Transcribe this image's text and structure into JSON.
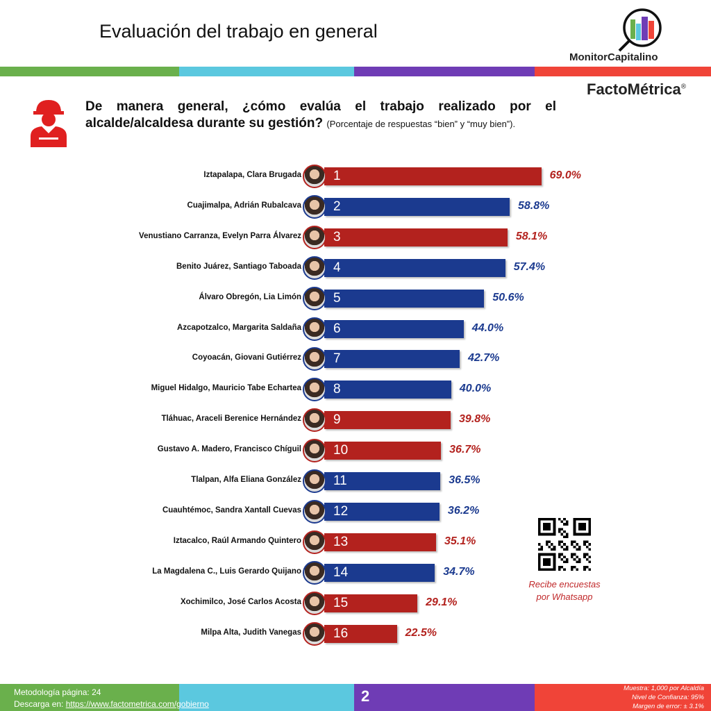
{
  "header": {
    "title": "Evaluación del trabajo en general",
    "logo_text": "MonitorCapitalino",
    "brand": "FactoMétrica",
    "registered": "®"
  },
  "colors": {
    "green": "#6ab04c",
    "cyan": "#5bc8df",
    "purple": "#6f3cb5",
    "red": "#f04438",
    "bar_red": "#b3221e",
    "bar_blue": "#1b3a8f"
  },
  "question": {
    "text": "De manera general, ¿cómo evalúa el trabajo realizado por el alcalde/alcaldesa durante su gestión?",
    "note": "(Porcentaje de respuestas “bien” y “muy bien”)."
  },
  "chart_data": {
    "type": "bar",
    "orientation": "horizontal",
    "unit": "%",
    "xlim": [
      0,
      100
    ],
    "categories": [
      "Iztapalapa, Clara Brugada",
      "Cuajimalpa, Adrián Rubalcava",
      "Venustiano Carranza, Evelyn Parra Álvarez",
      "Benito Juárez, Santiago Taboada",
      "Álvaro Obregón, Lia Limón",
      "Azcapotzalco, Margarita Saldaña",
      "Coyoacán, Giovani Gutiérrez",
      "Miguel Hidalgo, Mauricio Tabe Echartea",
      "Tláhuac, Araceli Berenice Hernández",
      "Gustavo A. Madero, Francisco Chíguil",
      "Tlalpan, Alfa Eliana González",
      "Cuauhtémoc, Sandra Xantall Cuevas",
      "Iztacalco, Raúl Armando Quintero",
      "La Magdalena C., Luis Gerardo Quijano",
      "Xochimilco, José Carlos Acosta",
      "Milpa Alta, Judith Vanegas"
    ],
    "values": [
      69.0,
      58.8,
      58.1,
      57.4,
      50.6,
      44.0,
      42.7,
      40.0,
      39.8,
      36.7,
      36.5,
      36.2,
      35.1,
      34.7,
      29.1,
      22.5
    ],
    "labels": [
      "69.0%",
      "58.8%",
      "58.1%",
      "57.4%",
      "50.6%",
      "44.0%",
      "42.7%",
      "40.0%",
      "39.8%",
      "36.7%",
      "36.5%",
      "36.2%",
      "35.1%",
      "34.7%",
      "29.1%",
      "22.5%"
    ],
    "ranks": [
      "1",
      "2",
      "3",
      "4",
      "5",
      "6",
      "7",
      "8",
      "9",
      "10",
      "11",
      "12",
      "13",
      "14",
      "15",
      "16"
    ],
    "bar_colors": [
      "red",
      "blue",
      "red",
      "blue",
      "blue",
      "blue",
      "blue",
      "blue",
      "red",
      "red",
      "blue",
      "blue",
      "red",
      "blue",
      "red",
      "red"
    ]
  },
  "qr": {
    "caption_1": "Recibe encuestas",
    "caption_2": "por Whatsapp"
  },
  "footer": {
    "methodology": "Metodología página: 24",
    "download_label": "Descarga en:",
    "download_link": "https://www.factometrica.com/gobierno",
    "page": "2",
    "sample": "Muestra:  1,000 por Alcaldía",
    "confidence": "Nivel de Confianza: 95%",
    "margin": "Margen de error: ± 3.1%"
  }
}
